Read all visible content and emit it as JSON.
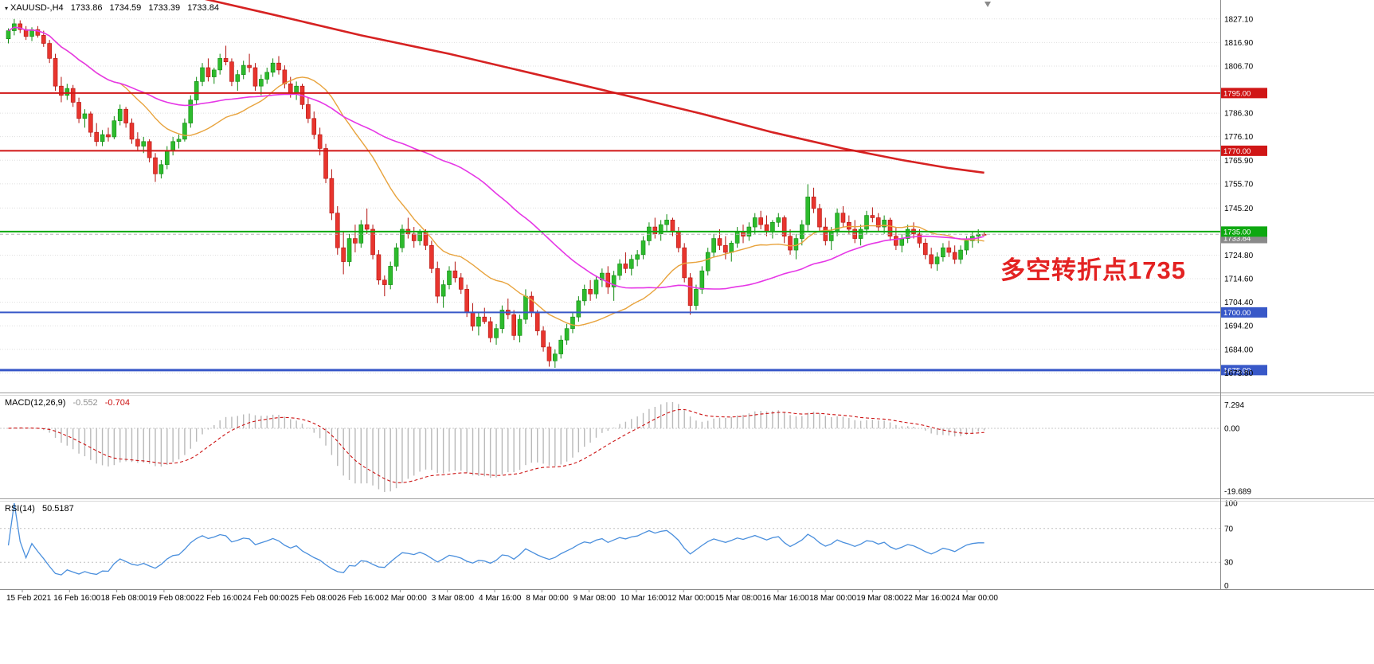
{
  "header": {
    "symbol": "XAUUSD-,H4",
    "ohlc": {
      "open": "1733.86",
      "high": "1734.59",
      "low": "1733.39",
      "close": "1733.84"
    }
  },
  "indicators": {
    "macd": {
      "title": "MACD(12,26,9)",
      "main": "-0.552",
      "signal": "-0.704"
    },
    "rsi": {
      "title": "RSI(14)",
      "value": "50.5187"
    }
  },
  "annotation": {
    "text": "多空转折点1735",
    "color": "#e32222"
  },
  "colors": {
    "bull": "#2dbb2d",
    "bull_border": "#118a11",
    "bear": "#e8352e",
    "bear_border": "#b3120e",
    "ma_fast": "#e8a33d",
    "ma_mid": "#e637e6",
    "ma_slow": "#d62222",
    "level_red": "#d01616",
    "level_green": "#0da810",
    "level_blue": "#3858c8",
    "macd_hist": "#b9b9b9",
    "macd_signal": "#cc1111",
    "rsi_line": "#4a8fdd",
    "grid": "#dfdfdf",
    "axis_border": "#8c8c8c",
    "current_tag": "#8a8a8a"
  },
  "chart_data": {
    "type": "candlestick",
    "title": "XAUUSD-,H4",
    "symbol": "XAUUSD",
    "timeframe": "H4",
    "ylim": [
      1665,
      1835
    ],
    "grid": true,
    "axis": {
      "price": [
        1827.1,
        1816.9,
        1806.7,
        1786.3,
        1776.1,
        1765.9,
        1755.7,
        1745.2,
        1724.8,
        1714.6,
        1704.4,
        1694.2,
        1684.0,
        1673.8
      ],
      "time": [
        "15 Feb 2021",
        "16 Feb 16:00",
        "18 Feb 08:00",
        "19 Feb 08:00",
        "22 Feb 16:00",
        "24 Feb 00:00",
        "25 Feb 08:00",
        "26 Feb 16:00",
        "2 Mar 00:00",
        "3 Mar 08:00",
        "4 Mar 16:00",
        "8 Mar 00:00",
        "9 Mar 08:00",
        "10 Mar 16:00",
        "12 Mar 00:00",
        "15 Mar 08:00",
        "16 Mar 16:00",
        "18 Mar 00:00",
        "19 Mar 08:00",
        "22 Mar 16:00",
        "24 Mar 00:00"
      ],
      "macd": [
        {
          "label": "7.294",
          "value": 7.294
        },
        {
          "label": "0.00",
          "value": 0
        },
        {
          "label": "-19.689",
          "value": -19.689
        }
      ],
      "rsi": [
        {
          "label": "100",
          "value": 100
        },
        {
          "label": "70",
          "value": 70
        },
        {
          "label": "30",
          "value": 30
        },
        {
          "label": "0",
          "value": 0
        }
      ]
    },
    "levels": [
      {
        "price": 1795.0,
        "label": "1795.00",
        "color": "#d01616",
        "width": 2
      },
      {
        "price": 1770.0,
        "label": "1770.00",
        "color": "#d01616",
        "width": 2
      },
      {
        "price": 1735.0,
        "label": "1735.00",
        "color": "#0da810",
        "width": 2
      },
      {
        "price": 1700.0,
        "label": "1700.00",
        "color": "#3858c8",
        "width": 2
      },
      {
        "price": 1675.0,
        "label": "1675.00",
        "color": "#3858c8",
        "width": 3
      }
    ],
    "current_price": {
      "value": 1733.84,
      "label": "1733.84"
    },
    "overlays": {
      "fast": 20,
      "mid": 50
    },
    "trend_line": [
      [
        33,
        1836
      ],
      [
        45,
        1829
      ],
      [
        60,
        1820
      ],
      [
        75,
        1812
      ],
      [
        90,
        1803
      ],
      [
        105,
        1794
      ],
      [
        118,
        1786
      ],
      [
        130,
        1778
      ],
      [
        142,
        1771
      ],
      [
        152,
        1766
      ],
      [
        160,
        1762.5
      ],
      [
        166,
        1760.5
      ]
    ],
    "candles": [
      [
        1818.5,
        1823,
        1816.5,
        1822
      ],
      [
        1822,
        1827.1,
        1820,
        1825
      ],
      [
        1825,
        1826.5,
        1821,
        1822.5
      ],
      [
        1822.5,
        1824,
        1818,
        1819.5
      ],
      [
        1819.5,
        1823.5,
        1817.5,
        1822.5
      ],
      [
        1822.5,
        1824,
        1819,
        1820
      ],
      [
        1820,
        1822,
        1815,
        1816.5
      ],
      [
        1816.5,
        1818,
        1808,
        1810
      ],
      [
        1810,
        1812,
        1796,
        1798
      ],
      [
        1798,
        1802,
        1791,
        1794
      ],
      [
        1794,
        1799,
        1792,
        1797
      ],
      [
        1797,
        1798.5,
        1789,
        1791
      ],
      [
        1791,
        1793,
        1782,
        1784
      ],
      [
        1784,
        1788,
        1780,
        1786
      ],
      [
        1786,
        1787,
        1776,
        1778
      ],
      [
        1778,
        1782,
        1772,
        1774
      ],
      [
        1774,
        1779,
        1772,
        1777
      ],
      [
        1777,
        1780,
        1774,
        1776
      ],
      [
        1776,
        1785,
        1775,
        1783
      ],
      [
        1783,
        1790,
        1781,
        1788
      ],
      [
        1788,
        1789,
        1780,
        1782
      ],
      [
        1782,
        1784,
        1773,
        1775
      ],
      [
        1775,
        1778,
        1770,
        1772
      ],
      [
        1772,
        1776,
        1769,
        1774
      ],
      [
        1774,
        1775,
        1765,
        1767
      ],
      [
        1767,
        1769,
        1756.5,
        1760
      ],
      [
        1760,
        1766,
        1758,
        1764
      ],
      [
        1764,
        1772,
        1762,
        1770
      ],
      [
        1770,
        1776,
        1768,
        1774
      ],
      [
        1774,
        1777,
        1771,
        1775
      ],
      [
        1775,
        1784,
        1774,
        1782
      ],
      [
        1782,
        1794,
        1780,
        1792
      ],
      [
        1792,
        1802,
        1790,
        1800
      ],
      [
        1800,
        1808,
        1798,
        1806
      ],
      [
        1806,
        1810,
        1800,
        1802
      ],
      [
        1802,
        1806,
        1799,
        1805
      ],
      [
        1805,
        1812,
        1803,
        1810
      ],
      [
        1810,
        1815.5,
        1807,
        1808.5
      ],
      [
        1808.5,
        1810,
        1798,
        1800
      ],
      [
        1800,
        1805,
        1796,
        1803
      ],
      [
        1803,
        1809,
        1801,
        1807
      ],
      [
        1807,
        1812,
        1804,
        1806
      ],
      [
        1806,
        1808,
        1796,
        1798
      ],
      [
        1798,
        1803,
        1794,
        1801
      ],
      [
        1801,
        1806,
        1799,
        1804
      ],
      [
        1804,
        1810,
        1802,
        1808
      ],
      [
        1808,
        1811,
        1803,
        1805
      ],
      [
        1805,
        1807,
        1797,
        1799
      ],
      [
        1799,
        1802,
        1793,
        1795
      ],
      [
        1795,
        1800,
        1792,
        1798
      ],
      [
        1798,
        1799,
        1788,
        1790
      ],
      [
        1790,
        1793,
        1782,
        1784
      ],
      [
        1784,
        1787,
        1775,
        1777
      ],
      [
        1777,
        1780,
        1768,
        1771
      ],
      [
        1771,
        1773,
        1756,
        1758
      ],
      [
        1758,
        1762,
        1740,
        1743
      ],
      [
        1743,
        1746,
        1725,
        1728
      ],
      [
        1728,
        1735,
        1716.5,
        1722
      ],
      [
        1722,
        1734,
        1720,
        1732
      ],
      [
        1732,
        1738,
        1726,
        1730
      ],
      [
        1730,
        1740,
        1728,
        1738
      ],
      [
        1738,
        1745,
        1734,
        1736
      ],
      [
        1736,
        1738,
        1723,
        1725
      ],
      [
        1725,
        1727,
        1712,
        1714
      ],
      [
        1714,
        1716,
        1707,
        1712
      ],
      [
        1712,
        1722,
        1710,
        1720
      ],
      [
        1720,
        1730,
        1718,
        1728
      ],
      [
        1728,
        1738,
        1726,
        1736
      ],
      [
        1736,
        1741,
        1732,
        1734
      ],
      [
        1734,
        1737,
        1728,
        1731
      ],
      [
        1731,
        1736,
        1729,
        1735
      ],
      [
        1735,
        1736,
        1727,
        1729
      ],
      [
        1729,
        1731,
        1717,
        1719
      ],
      [
        1719,
        1722,
        1704,
        1707
      ],
      [
        1707,
        1714,
        1702,
        1712
      ],
      [
        1712,
        1720,
        1710,
        1718
      ],
      [
        1718,
        1722,
        1713,
        1715
      ],
      [
        1715,
        1717,
        1708,
        1710
      ],
      [
        1710,
        1712,
        1698,
        1700
      ],
      [
        1700,
        1704,
        1692,
        1694
      ],
      [
        1694,
        1700,
        1690,
        1698
      ],
      [
        1698,
        1702,
        1695,
        1696
      ],
      [
        1696,
        1698,
        1687,
        1689
      ],
      [
        1689,
        1695,
        1686,
        1693
      ],
      [
        1693,
        1703,
        1691,
        1701
      ],
      [
        1701,
        1706,
        1697,
        1699
      ],
      [
        1699,
        1701,
        1688,
        1690
      ],
      [
        1690,
        1699,
        1687,
        1697
      ],
      [
        1697,
        1710,
        1695,
        1707
      ],
      [
        1707,
        1709,
        1698,
        1700
      ],
      [
        1700,
        1701,
        1690,
        1692
      ],
      [
        1692,
        1694,
        1683,
        1685
      ],
      [
        1685,
        1687,
        1676.5,
        1679
      ],
      [
        1679,
        1684,
        1676,
        1682
      ],
      [
        1682,
        1690,
        1680,
        1688
      ],
      [
        1688,
        1695,
        1686,
        1693
      ],
      [
        1693,
        1700,
        1691,
        1698
      ],
      [
        1698,
        1707,
        1696,
        1705
      ],
      [
        1705,
        1712,
        1703,
        1710
      ],
      [
        1710,
        1714,
        1705,
        1708
      ],
      [
        1708,
        1716,
        1706,
        1714
      ],
      [
        1714,
        1719,
        1711,
        1717
      ],
      [
        1717,
        1720,
        1708,
        1711
      ],
      [
        1711,
        1718,
        1705,
        1716
      ],
      [
        1716,
        1723,
        1714,
        1721
      ],
      [
        1721,
        1726,
        1717,
        1719
      ],
      [
        1719,
        1725,
        1716,
        1723
      ],
      [
        1723,
        1727,
        1720,
        1725
      ],
      [
        1725,
        1733,
        1723,
        1731
      ],
      [
        1731,
        1739,
        1729,
        1737
      ],
      [
        1737,
        1741,
        1732,
        1734
      ],
      [
        1734,
        1740,
        1731,
        1738
      ],
      [
        1738,
        1742.5,
        1735,
        1740
      ],
      [
        1740,
        1741,
        1733,
        1735
      ],
      [
        1735,
        1737,
        1726,
        1728
      ],
      [
        1728,
        1730,
        1713,
        1715
      ],
      [
        1715,
        1717,
        1699,
        1703
      ],
      [
        1703,
        1712,
        1701,
        1710
      ],
      [
        1710,
        1720,
        1708,
        1718
      ],
      [
        1718,
        1728,
        1716,
        1726
      ],
      [
        1726,
        1734,
        1724,
        1732
      ],
      [
        1732,
        1736,
        1727,
        1729
      ],
      [
        1729,
        1733,
        1723,
        1726
      ],
      [
        1726,
        1731,
        1722,
        1730
      ],
      [
        1730,
        1737,
        1728,
        1735
      ],
      [
        1735,
        1738,
        1730,
        1733
      ],
      [
        1733,
        1739,
        1731,
        1737
      ],
      [
        1737,
        1743,
        1734,
        1741
      ],
      [
        1741,
        1744,
        1736,
        1738
      ],
      [
        1738,
        1742,
        1733,
        1735
      ],
      [
        1735,
        1740,
        1732,
        1739
      ],
      [
        1739,
        1743,
        1737,
        1741
      ],
      [
        1741,
        1742,
        1730,
        1733
      ],
      [
        1733,
        1736,
        1725,
        1727
      ],
      [
        1727,
        1734,
        1723,
        1732
      ],
      [
        1732,
        1740,
        1729,
        1738
      ],
      [
        1738,
        1755.5,
        1735,
        1750
      ],
      [
        1750,
        1754,
        1743,
        1745
      ],
      [
        1745,
        1747,
        1735,
        1737
      ],
      [
        1737,
        1741,
        1729,
        1731
      ],
      [
        1731,
        1737,
        1727,
        1735
      ],
      [
        1735,
        1745,
        1733,
        1743
      ],
      [
        1743,
        1746,
        1737,
        1739
      ],
      [
        1739,
        1742,
        1734,
        1736
      ],
      [
        1736,
        1740,
        1730,
        1732
      ],
      [
        1732,
        1738,
        1729,
        1736
      ],
      [
        1736,
        1744,
        1734,
        1742
      ],
      [
        1742,
        1745.5,
        1739,
        1741
      ],
      [
        1741,
        1743,
        1735,
        1737
      ],
      [
        1737,
        1742,
        1734,
        1740
      ],
      [
        1740,
        1741,
        1731,
        1733
      ],
      [
        1733,
        1737,
        1727,
        1729
      ],
      [
        1729,
        1734,
        1726,
        1732
      ],
      [
        1732,
        1738,
        1730,
        1736
      ],
      [
        1736,
        1739,
        1732,
        1734
      ],
      [
        1734,
        1736,
        1728,
        1730
      ],
      [
        1730,
        1732,
        1723,
        1725
      ],
      [
        1725,
        1728,
        1719,
        1721
      ],
      [
        1721,
        1726,
        1718,
        1724
      ],
      [
        1724,
        1730,
        1722,
        1728
      ],
      [
        1728,
        1731,
        1724,
        1726
      ],
      [
        1726,
        1729,
        1721,
        1723
      ],
      [
        1723,
        1729,
        1721,
        1727
      ],
      [
        1727,
        1733,
        1725,
        1731
      ],
      [
        1731,
        1735,
        1728,
        1733
      ],
      [
        1733,
        1736,
        1730,
        1733.86
      ],
      [
        1733.86,
        1734.59,
        1733.39,
        1733.84
      ]
    ]
  }
}
